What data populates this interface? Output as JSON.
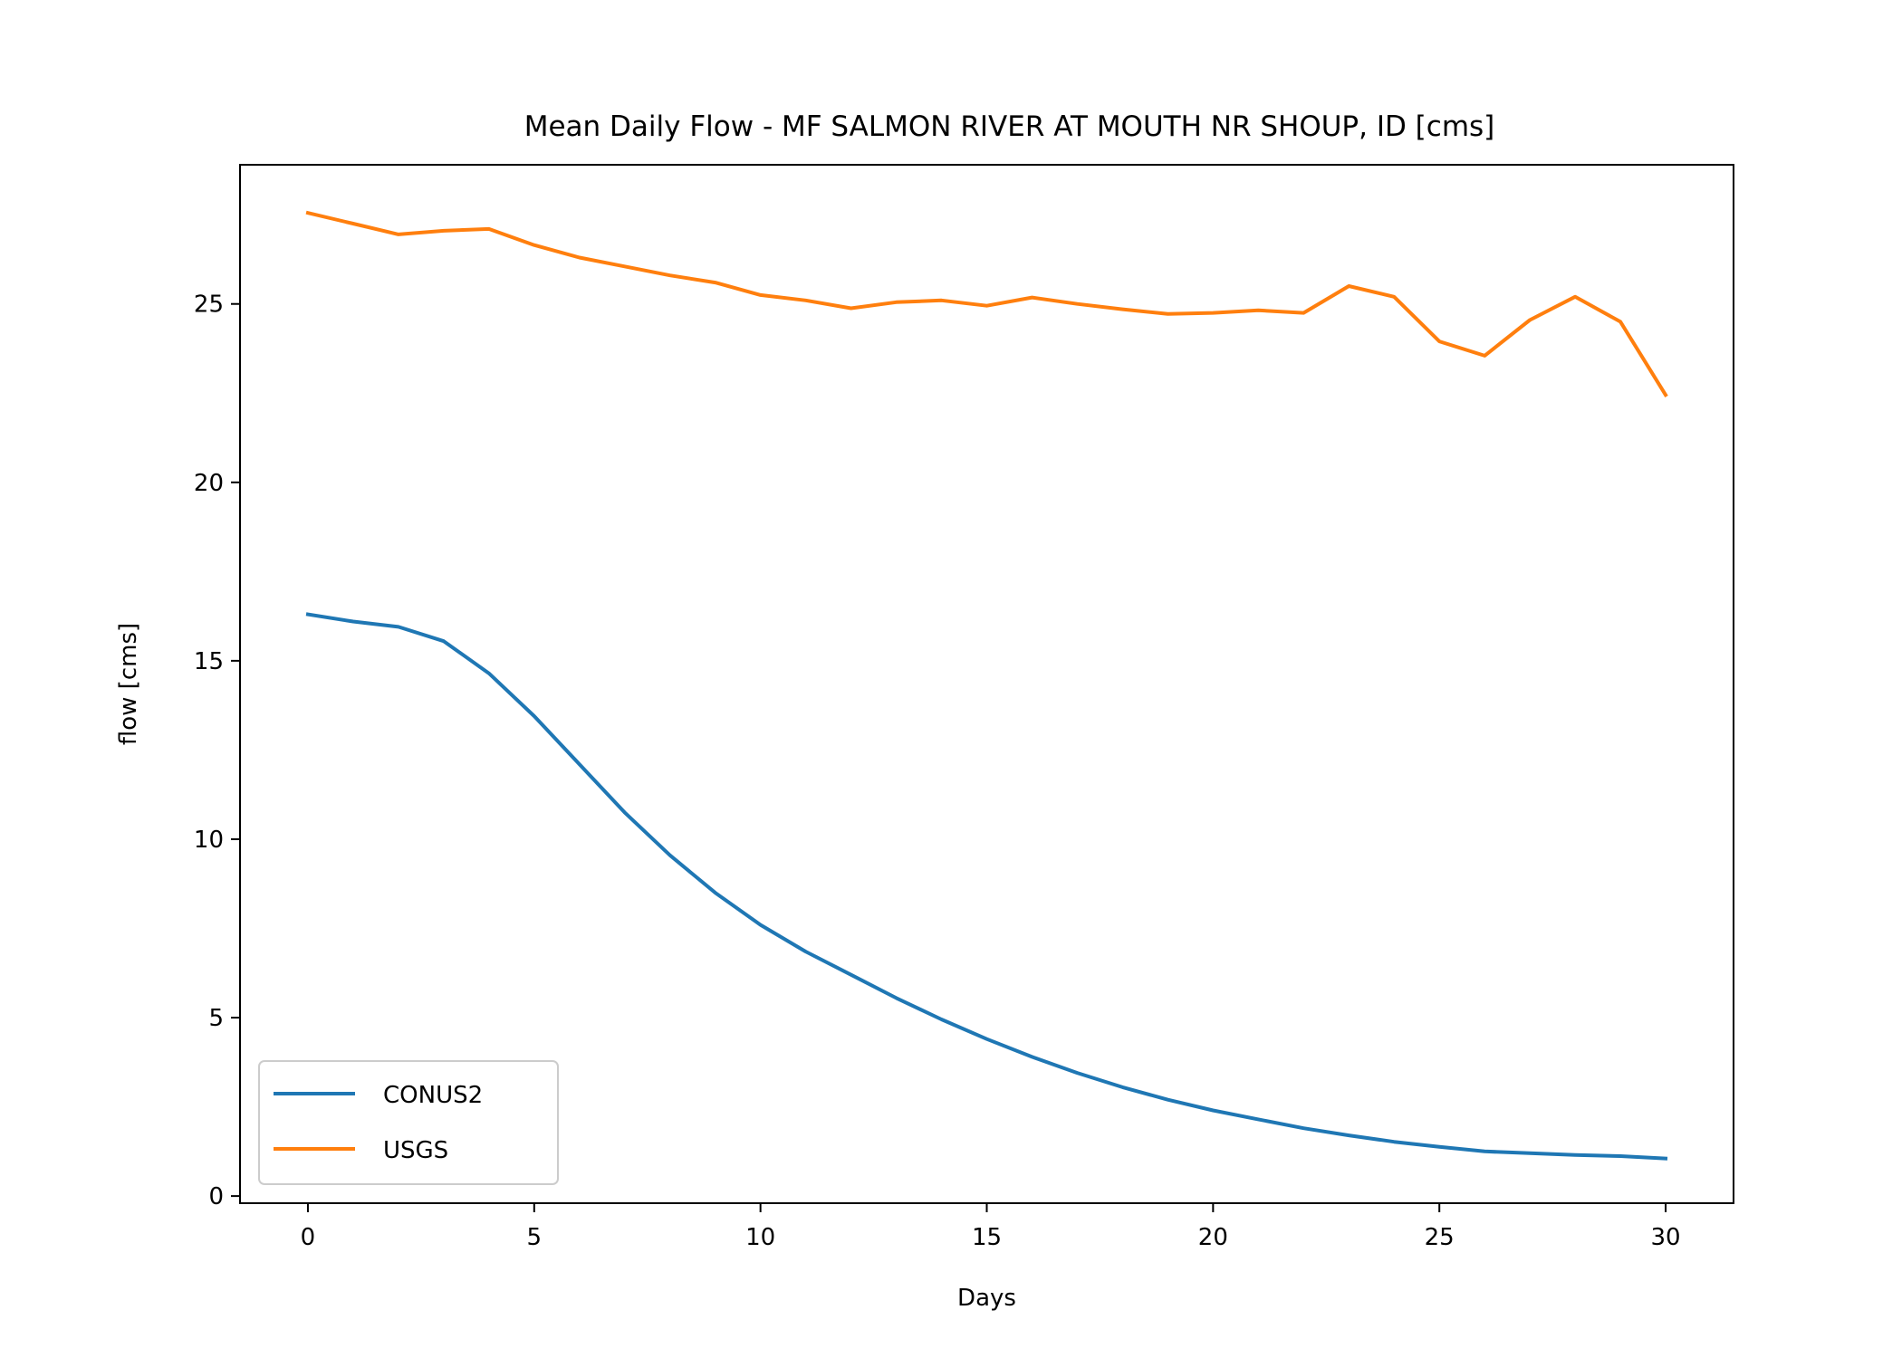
{
  "chart_data": {
    "type": "line",
    "title": "Mean Daily Flow - MF SALMON RIVER AT MOUTH NR SHOUP, ID [cms]",
    "xlabel": "Days",
    "ylabel": "flow [cms]",
    "xlim": [
      -1.5,
      31.5
    ],
    "ylim": [
      -0.2,
      28.9
    ],
    "xticks": [
      0,
      5,
      10,
      15,
      20,
      25,
      30
    ],
    "yticks": [
      0,
      5,
      10,
      15,
      20,
      25
    ],
    "grid": false,
    "legend_position": "lower-left",
    "x": [
      0,
      1,
      2,
      3,
      4,
      5,
      6,
      7,
      8,
      9,
      10,
      11,
      12,
      13,
      14,
      15,
      16,
      17,
      18,
      19,
      20,
      21,
      22,
      23,
      24,
      25,
      26,
      27,
      28,
      29,
      30
    ],
    "series": [
      {
        "name": "CONUS2",
        "color": "#1f77b4",
        "values": [
          16.3,
          16.1,
          15.95,
          15.55,
          14.65,
          13.45,
          12.1,
          10.75,
          9.55,
          8.5,
          7.6,
          6.85,
          6.2,
          5.55,
          4.95,
          4.4,
          3.9,
          3.45,
          3.05,
          2.7,
          2.4,
          2.15,
          1.9,
          1.7,
          1.52,
          1.38,
          1.25,
          1.2,
          1.15,
          1.12,
          1.05
        ]
      },
      {
        "name": "USGS",
        "color": "#ff7f0e",
        "values": [
          27.55,
          27.25,
          26.95,
          27.05,
          27.1,
          26.65,
          26.3,
          26.05,
          25.8,
          25.6,
          25.25,
          25.1,
          24.88,
          25.05,
          25.1,
          24.95,
          25.18,
          25.0,
          24.85,
          24.72,
          24.75,
          24.82,
          24.75,
          25.5,
          25.2,
          23.95,
          23.55,
          24.55,
          25.2,
          24.5,
          22.45
        ]
      }
    ]
  }
}
